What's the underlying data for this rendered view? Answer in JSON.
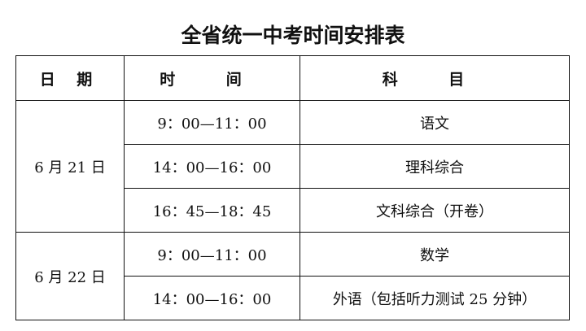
{
  "title": "全省统一中考时间安排表",
  "headers": {
    "date": "日 期",
    "time": "时   间",
    "subject": "科   目"
  },
  "days": [
    {
      "date": "6 月 21 日",
      "sessions": [
        {
          "time": "9：00—11：00",
          "subject": "语文"
        },
        {
          "time": "14：00—16：00",
          "subject": "理科综合"
        },
        {
          "time": "16：45—18：45",
          "subject": "文科综合（开卷）"
        }
      ]
    },
    {
      "date": "6 月 22 日",
      "sessions": [
        {
          "time": "9：00—11：00",
          "subject": "数学"
        },
        {
          "time": "14：00—16：00",
          "subject": "外语（包括听力测试 25 分钟）"
        }
      ]
    }
  ]
}
